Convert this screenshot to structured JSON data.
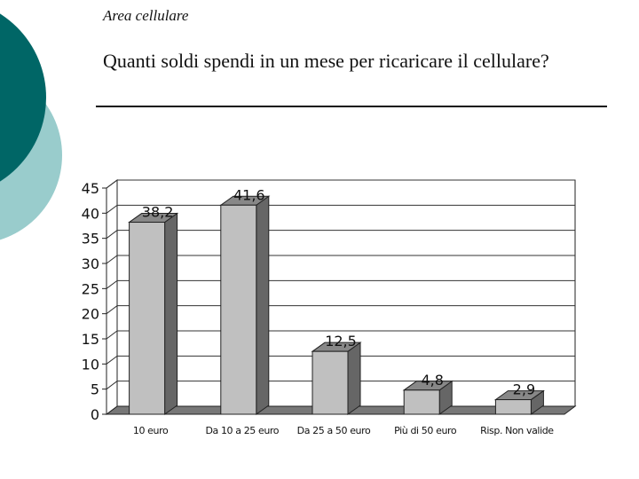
{
  "header": {
    "section": "Area cellulare"
  },
  "slide": {
    "title": "Quanti soldi spendi in un mese per ricaricare il cellulare?"
  },
  "colors": {
    "accent_dark": "#006666",
    "accent_light": "#99cccc",
    "bar_face": "#c0c0c0",
    "bar_side": "#666666",
    "bar_top": "#888888"
  },
  "chart_data": {
    "type": "bar",
    "categories": [
      "10 euro",
      "Da 10 a 25 euro",
      "Da 25 a 50 euro",
      "Più di 50 euro",
      "Risp. Non valide"
    ],
    "values": [
      38.2,
      41.6,
      12.5,
      4.8,
      2.9
    ],
    "value_labels": [
      "38,2",
      "41,6",
      "12,5",
      "4,8",
      "2,9"
    ],
    "y_ticks": [
      "0",
      "5",
      "10",
      "15",
      "20",
      "25",
      "30",
      "35",
      "40",
      "45"
    ],
    "ylim": [
      0,
      45
    ],
    "grid": true,
    "three_d": true
  }
}
